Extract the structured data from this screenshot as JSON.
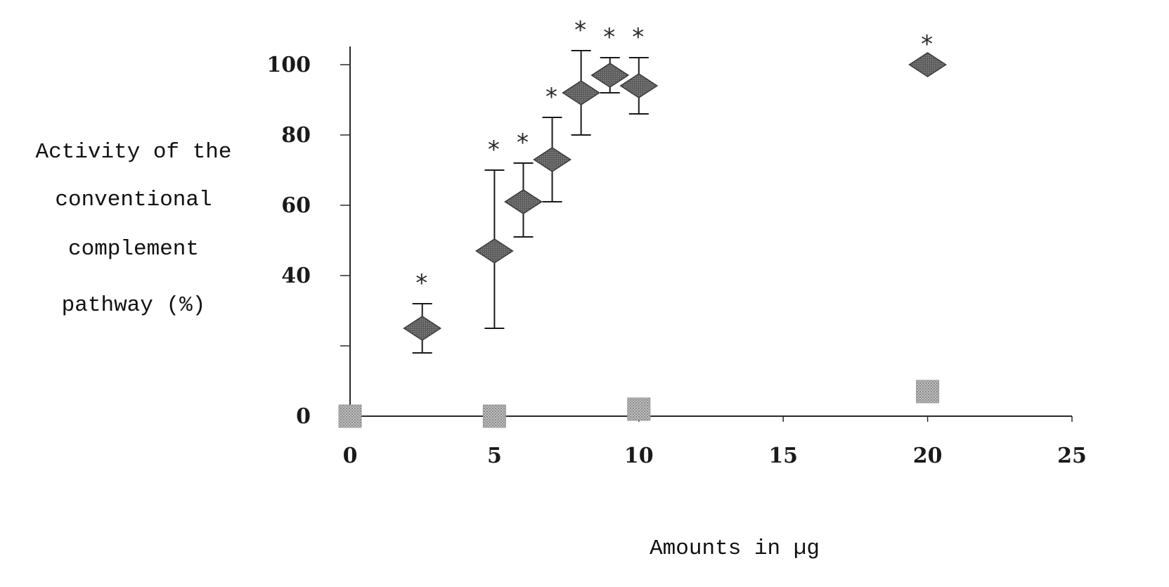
{
  "chart_data": {
    "type": "scatter",
    "title": "",
    "xlabel": "Amounts in µg",
    "ylabel_lines": [
      "Activity of the",
      "conventional",
      "complement",
      "pathway (%)"
    ],
    "xlim": [
      0,
      25
    ],
    "ylim": [
      0,
      100
    ],
    "x_ticks": [
      0,
      5,
      10,
      15,
      20,
      25
    ],
    "x_tick_labels": [
      "0",
      "5",
      "10",
      "15",
      "20",
      "25"
    ],
    "y_ticks": [
      0,
      20,
      40,
      60,
      80,
      100
    ],
    "y_tick_labels": [
      "0",
      "",
      "40",
      "60",
      "80",
      "100"
    ],
    "grid": false,
    "legend": "none",
    "significance_marker": "*",
    "series": [
      {
        "marker": "diamond",
        "color": "#555555",
        "points": [
          {
            "x": 2.5,
            "y": 25,
            "err_low": 7,
            "err_high": 7,
            "significant": true
          },
          {
            "x": 5,
            "y": 47,
            "err_low": 22,
            "err_high": 23,
            "significant": true
          },
          {
            "x": 6,
            "y": 61,
            "err_low": 10,
            "err_high": 11,
            "significant": true
          },
          {
            "x": 7,
            "y": 73,
            "err_low": 12,
            "err_high": 12,
            "significant": true
          },
          {
            "x": 8,
            "y": 92,
            "err_low": 12,
            "err_high": 12,
            "significant": true
          },
          {
            "x": 9,
            "y": 97,
            "err_low": 5,
            "err_high": 5,
            "significant": true
          },
          {
            "x": 10,
            "y": 94,
            "err_low": 8,
            "err_high": 8,
            "significant": true
          },
          {
            "x": 20,
            "y": 100,
            "err_low": 0,
            "err_high": 0,
            "significant": true
          }
        ]
      },
      {
        "marker": "square",
        "color": "#a8a8a8",
        "points": [
          {
            "x": 0,
            "y": 0
          },
          {
            "x": 5,
            "y": 0
          },
          {
            "x": 10,
            "y": 2
          },
          {
            "x": 20,
            "y": 7
          }
        ]
      }
    ]
  }
}
